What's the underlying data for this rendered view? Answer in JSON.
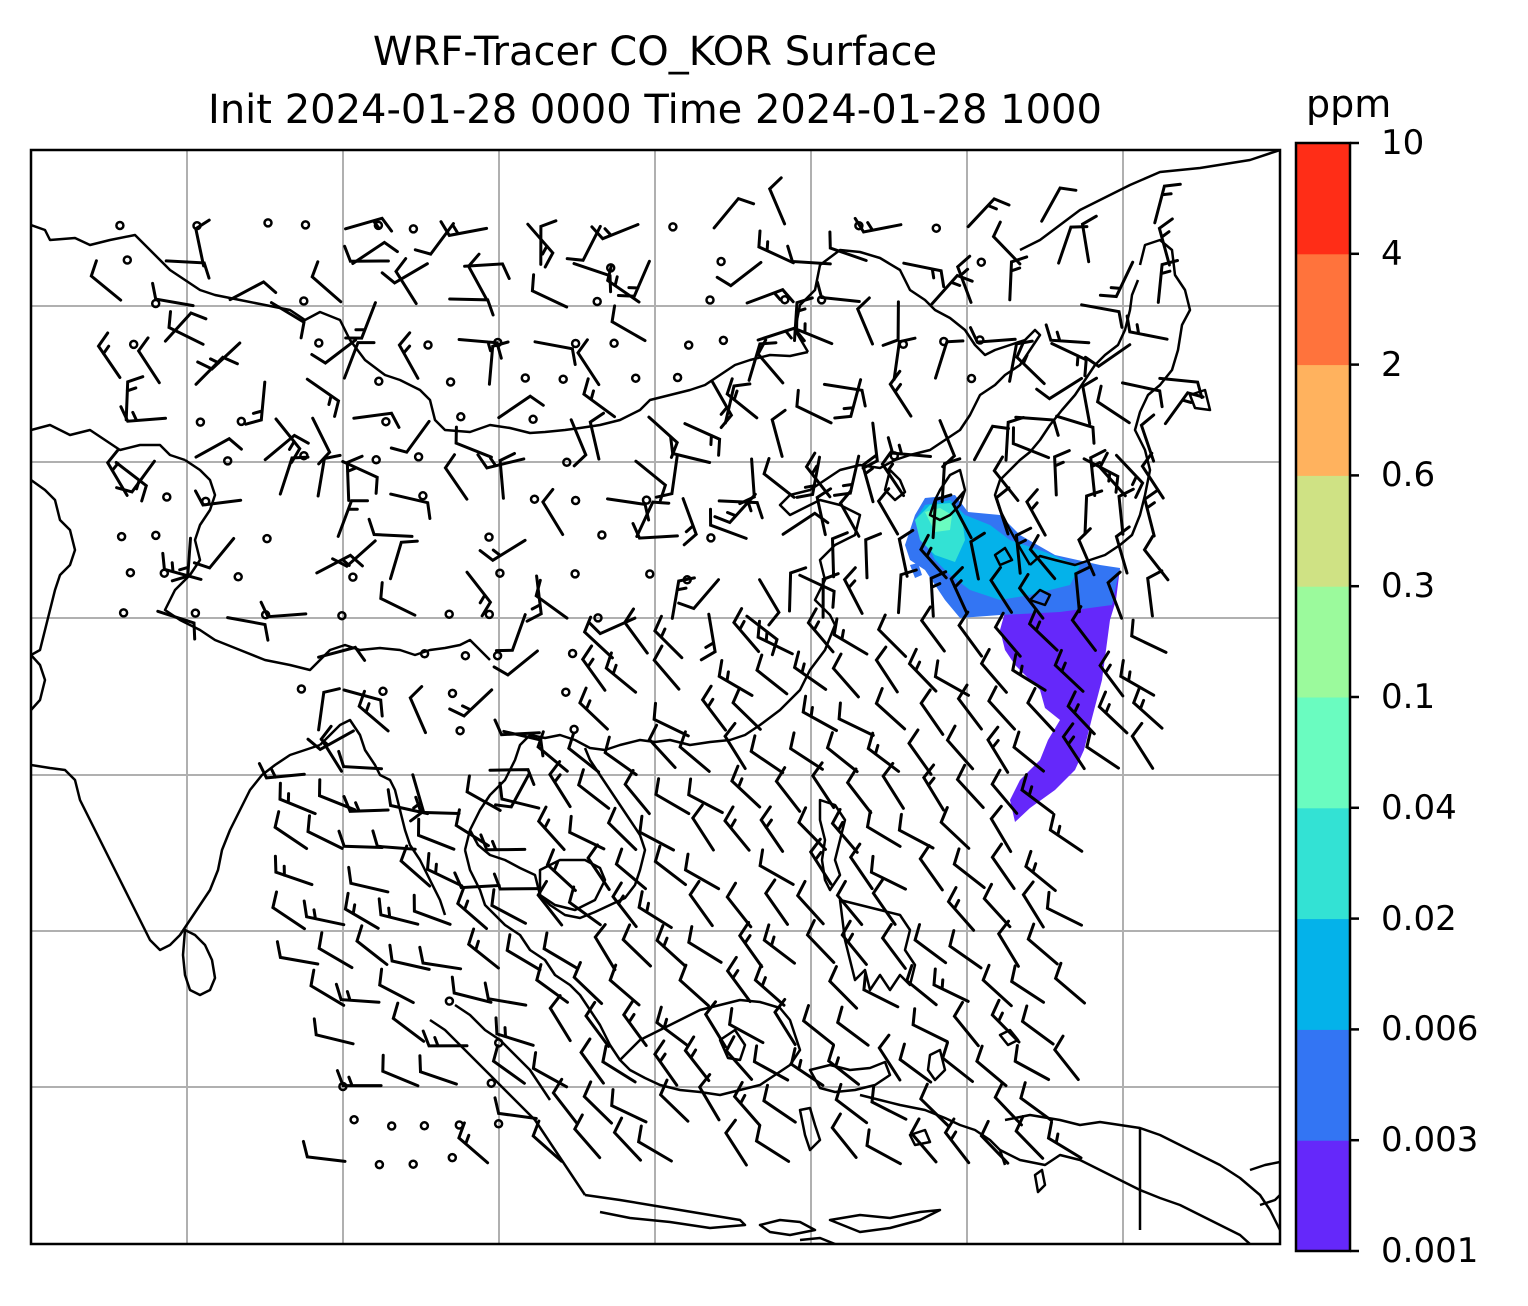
{
  "title": {
    "line1": "WRF-Tracer CO_KOR Surface",
    "line2": "Init 2024-01-28 0000 Time 2024-01-28 1000"
  },
  "colorbar": {
    "unit": "ppm",
    "levels": [
      "0.001",
      "0.003",
      "0.006",
      "0.02",
      "0.04",
      "0.1",
      "0.3",
      "0.6",
      "2",
      "4",
      "10"
    ],
    "colors": [
      "#6528fa",
      "#3375f3",
      "#04b2ea",
      "#33e2d4",
      "#6afcc0",
      "#9bfa9c",
      "#cfe284",
      "#ffb25e",
      "#ff733c",
      "#ff2d17"
    ]
  },
  "map_layers": {
    "coastlines": "black",
    "gridlines": "#b0b0b0",
    "tracer_field": "CO_KOR",
    "wind_barbs": "black"
  }
}
